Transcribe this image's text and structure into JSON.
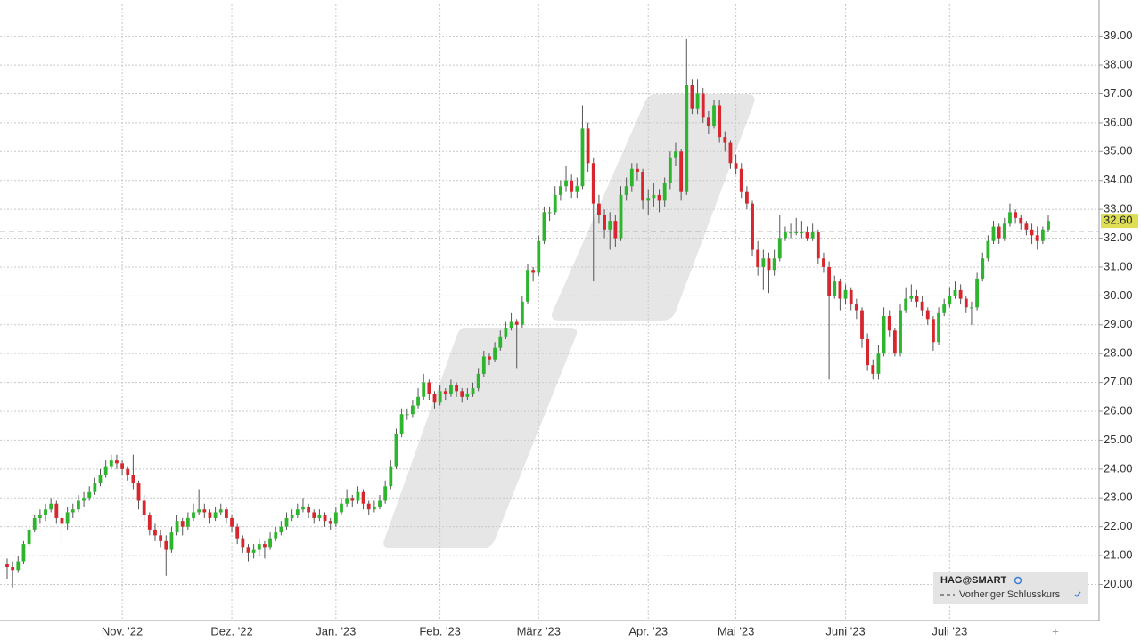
{
  "chart_data": {
    "type": "candlestick",
    "categories": [
      null,
      null,
      null,
      null,
      null,
      null,
      null,
      null,
      null,
      null,
      null,
      null,
      null,
      null,
      null,
      null,
      null,
      null,
      null,
      null,
      null,
      "Nov. '22",
      null,
      null,
      null,
      null,
      null,
      null,
      null,
      null,
      null,
      null,
      null,
      null,
      null,
      null,
      null,
      null,
      null,
      null,
      null,
      "Dez. '22",
      null,
      null,
      null,
      null,
      null,
      null,
      null,
      null,
      null,
      null,
      null,
      null,
      null,
      null,
      null,
      null,
      null,
      null,
      "Jan. '23",
      null,
      null,
      null,
      null,
      null,
      null,
      null,
      null,
      null,
      null,
      null,
      null,
      null,
      null,
      null,
      null,
      null,
      null,
      "Feb. '23",
      null,
      null,
      null,
      null,
      null,
      null,
      null,
      null,
      null,
      null,
      null,
      null,
      null,
      null,
      null,
      null,
      null,
      "März '23",
      null,
      null,
      null,
      null,
      null,
      null,
      null,
      null,
      null,
      null,
      null,
      null,
      null,
      null,
      null,
      null,
      null,
      null,
      null,
      "Apr. '23",
      null,
      null,
      null,
      null,
      null,
      null,
      null,
      null,
      null,
      null,
      null,
      null,
      null,
      null,
      null,
      "Mai '23",
      null,
      null,
      null,
      null,
      null,
      null,
      null,
      null,
      null,
      null,
      null,
      null,
      null,
      null,
      null,
      null,
      null,
      null,
      null,
      "Juni '23",
      null,
      null,
      null,
      null,
      null,
      null,
      null,
      null,
      null,
      null,
      null,
      null,
      null,
      null,
      null,
      null,
      null,
      null,
      "Juli '23",
      null,
      null,
      null,
      null,
      null,
      null,
      null,
      null,
      null,
      null,
      null,
      null,
      null,
      null,
      null,
      null,
      null,
      null
    ],
    "values": [
      [
        20.7,
        20.9,
        20.2,
        20.6
      ],
      [
        20.6,
        20.8,
        19.9,
        20.5
      ],
      [
        20.5,
        21.0,
        20.4,
        20.8
      ],
      [
        20.8,
        21.5,
        20.7,
        21.4
      ],
      [
        21.4,
        22.0,
        21.3,
        21.9
      ],
      [
        21.9,
        22.4,
        21.8,
        22.3
      ],
      [
        22.3,
        22.6,
        22.1,
        22.4
      ],
      [
        22.4,
        22.8,
        22.2,
        22.6
      ],
      [
        22.6,
        23.0,
        22.5,
        22.8
      ],
      [
        22.8,
        22.9,
        22.1,
        22.3
      ],
      [
        22.3,
        22.5,
        21.4,
        22.1
      ],
      [
        22.1,
        22.7,
        21.9,
        22.5
      ],
      [
        22.5,
        22.8,
        22.3,
        22.6
      ],
      [
        22.6,
        23.1,
        22.5,
        22.9
      ],
      [
        22.9,
        23.2,
        22.7,
        23.0
      ],
      [
        23.0,
        23.4,
        22.9,
        23.2
      ],
      [
        23.2,
        23.7,
        23.1,
        23.5
      ],
      [
        23.5,
        24.0,
        23.4,
        23.8
      ],
      [
        23.8,
        24.3,
        23.7,
        24.1
      ],
      [
        24.1,
        24.5,
        24.0,
        24.3
      ],
      [
        24.3,
        24.5,
        24.0,
        24.2
      ],
      [
        24.2,
        24.3,
        23.8,
        24.0
      ],
      [
        24.0,
        24.1,
        23.6,
        23.8
      ],
      [
        23.8,
        24.5,
        23.3,
        23.5
      ],
      [
        23.5,
        23.6,
        22.6,
        22.9
      ],
      [
        22.9,
        23.1,
        22.2,
        22.4
      ],
      [
        22.4,
        22.5,
        21.7,
        21.9
      ],
      [
        21.9,
        22.1,
        21.5,
        21.7
      ],
      [
        21.7,
        21.9,
        21.3,
        21.5
      ],
      [
        21.5,
        21.7,
        20.3,
        21.2
      ],
      [
        21.2,
        22.0,
        21.1,
        21.8
      ],
      [
        21.8,
        22.4,
        21.7,
        22.2
      ],
      [
        22.2,
        22.3,
        21.7,
        22.0
      ],
      [
        22.0,
        22.5,
        21.9,
        22.3
      ],
      [
        22.3,
        22.8,
        22.2,
        22.5
      ],
      [
        22.5,
        23.3,
        22.4,
        22.6
      ],
      [
        22.6,
        22.8,
        22.3,
        22.5
      ],
      [
        22.5,
        22.6,
        22.1,
        22.3
      ],
      [
        22.3,
        22.7,
        22.2,
        22.5
      ],
      [
        22.5,
        22.8,
        22.4,
        22.6
      ],
      [
        22.6,
        22.7,
        22.1,
        22.3
      ],
      [
        22.3,
        22.4,
        21.8,
        22.0
      ],
      [
        22.0,
        22.1,
        21.4,
        21.6
      ],
      [
        21.6,
        21.7,
        21.1,
        21.3
      ],
      [
        21.3,
        21.4,
        20.8,
        21.1
      ],
      [
        21.1,
        21.4,
        20.9,
        21.2
      ],
      [
        21.2,
        21.6,
        21.0,
        21.4
      ],
      [
        21.4,
        21.5,
        20.9,
        21.3
      ],
      [
        21.3,
        21.8,
        21.2,
        21.6
      ],
      [
        21.6,
        22.0,
        21.5,
        21.8
      ],
      [
        21.8,
        22.2,
        21.7,
        22.0
      ],
      [
        22.0,
        22.5,
        21.9,
        22.3
      ],
      [
        22.3,
        22.6,
        22.2,
        22.4
      ],
      [
        22.4,
        22.8,
        22.3,
        22.6
      ],
      [
        22.6,
        23.0,
        22.5,
        22.7
      ],
      [
        22.7,
        22.8,
        22.3,
        22.5
      ],
      [
        22.5,
        22.6,
        22.1,
        22.3
      ],
      [
        22.3,
        22.6,
        22.2,
        22.4
      ],
      [
        22.4,
        22.5,
        22.0,
        22.2
      ],
      [
        22.2,
        22.3,
        21.9,
        22.1
      ],
      [
        22.1,
        22.7,
        22.0,
        22.5
      ],
      [
        22.5,
        23.0,
        22.4,
        22.8
      ],
      [
        22.8,
        23.3,
        22.7,
        23.0
      ],
      [
        23.0,
        23.1,
        22.7,
        22.9
      ],
      [
        22.9,
        23.4,
        22.8,
        23.2
      ],
      [
        23.2,
        23.3,
        22.6,
        22.8
      ],
      [
        22.8,
        22.9,
        22.4,
        22.6
      ],
      [
        22.6,
        22.9,
        22.5,
        22.7
      ],
      [
        22.7,
        23.1,
        22.6,
        22.9
      ],
      [
        22.9,
        23.6,
        22.8,
        23.4
      ],
      [
        23.4,
        24.3,
        23.3,
        24.1
      ],
      [
        24.1,
        25.4,
        24.0,
        25.2
      ],
      [
        25.2,
        26.1,
        25.1,
        25.9
      ],
      [
        25.9,
        26.1,
        25.7,
        25.9
      ],
      [
        25.9,
        26.4,
        25.8,
        26.2
      ],
      [
        26.2,
        26.8,
        26.1,
        26.5
      ],
      [
        26.5,
        27.3,
        26.4,
        27.0
      ],
      [
        27.0,
        27.1,
        26.4,
        26.6
      ],
      [
        26.6,
        26.7,
        26.1,
        26.3
      ],
      [
        26.3,
        26.9,
        26.2,
        26.7
      ],
      [
        26.7,
        26.8,
        26.4,
        26.6
      ],
      [
        26.6,
        27.1,
        26.5,
        26.9
      ],
      [
        26.9,
        27.0,
        26.5,
        26.7
      ],
      [
        26.7,
        26.8,
        26.3,
        26.5
      ],
      [
        26.5,
        26.8,
        26.4,
        26.6
      ],
      [
        26.6,
        27.0,
        26.5,
        26.8
      ],
      [
        26.8,
        27.5,
        26.7,
        27.3
      ],
      [
        27.3,
        28.1,
        27.2,
        27.9
      ],
      [
        27.9,
        28.0,
        27.6,
        27.8
      ],
      [
        27.8,
        28.4,
        27.7,
        28.2
      ],
      [
        28.2,
        28.8,
        28.1,
        28.6
      ],
      [
        28.6,
        29.1,
        28.5,
        28.9
      ],
      [
        28.9,
        29.4,
        28.8,
        29.1
      ],
      [
        29.1,
        29.2,
        27.5,
        29.0
      ],
      [
        29.0,
        30.0,
        28.9,
        29.8
      ],
      [
        29.8,
        31.1,
        29.7,
        30.9
      ],
      [
        30.9,
        31.0,
        30.5,
        30.8
      ],
      [
        30.8,
        32.1,
        30.7,
        31.9
      ],
      [
        31.9,
        33.1,
        31.8,
        32.9
      ],
      [
        32.9,
        33.1,
        32.6,
        32.9
      ],
      [
        32.9,
        33.8,
        32.8,
        33.5
      ],
      [
        33.5,
        34.0,
        33.3,
        33.8
      ],
      [
        33.8,
        34.5,
        33.6,
        34.0
      ],
      [
        34.0,
        34.2,
        33.4,
        33.6
      ],
      [
        33.6,
        34.1,
        33.4,
        33.8
      ],
      [
        33.8,
        36.6,
        33.7,
        35.8
      ],
      [
        35.8,
        36.0,
        34.3,
        34.6
      ],
      [
        34.6,
        34.8,
        30.5,
        33.2
      ],
      [
        33.2,
        33.5,
        32.5,
        32.8
      ],
      [
        32.8,
        33.0,
        32.0,
        32.3
      ],
      [
        32.3,
        32.9,
        31.6,
        32.6
      ],
      [
        32.6,
        32.8,
        31.7,
        32.0
      ],
      [
        32.0,
        33.8,
        31.9,
        33.5
      ],
      [
        33.5,
        34.1,
        33.3,
        33.8
      ],
      [
        33.8,
        34.6,
        33.6,
        34.4
      ],
      [
        34.4,
        34.6,
        34.0,
        34.3
      ],
      [
        34.3,
        34.4,
        33.0,
        33.3
      ],
      [
        33.3,
        33.7,
        32.8,
        33.4
      ],
      [
        33.4,
        33.9,
        33.1,
        33.5
      ],
      [
        33.5,
        33.7,
        32.9,
        33.3
      ],
      [
        33.3,
        34.1,
        33.1,
        33.9
      ],
      [
        33.9,
        35.0,
        33.7,
        34.8
      ],
      [
        34.8,
        35.3,
        34.5,
        35.0
      ],
      [
        35.0,
        35.1,
        33.3,
        33.6
      ],
      [
        33.6,
        38.9,
        33.5,
        37.3
      ],
      [
        37.3,
        37.5,
        36.3,
        36.5
      ],
      [
        36.5,
        37.5,
        36.3,
        37.0
      ],
      [
        37.0,
        37.2,
        36.0,
        36.2
      ],
      [
        36.2,
        36.4,
        35.6,
        35.9
      ],
      [
        35.9,
        36.8,
        35.8,
        36.6
      ],
      [
        36.6,
        36.8,
        35.3,
        35.5
      ],
      [
        35.5,
        35.7,
        35.0,
        35.3
      ],
      [
        35.3,
        35.4,
        34.4,
        34.6
      ],
      [
        34.6,
        34.9,
        34.2,
        34.4
      ],
      [
        34.4,
        34.6,
        33.4,
        33.6
      ],
      [
        33.6,
        33.8,
        33.0,
        33.2
      ],
      [
        33.2,
        33.3,
        31.4,
        31.6
      ],
      [
        31.6,
        31.9,
        30.7,
        31.0
      ],
      [
        31.0,
        31.6,
        30.2,
        31.3
      ],
      [
        31.3,
        31.5,
        30.1,
        30.9
      ],
      [
        30.9,
        31.6,
        30.7,
        31.3
      ],
      [
        31.3,
        32.8,
        31.2,
        32.0
      ],
      [
        32.0,
        32.4,
        31.9,
        32.2
      ],
      [
        32.2,
        32.5,
        32.0,
        32.2
      ],
      [
        32.2,
        32.7,
        32.1,
        32.2
      ],
      [
        32.2,
        32.6,
        32.0,
        32.2
      ],
      [
        32.2,
        32.4,
        31.9,
        32.0
      ],
      [
        32.0,
        32.5,
        31.9,
        32.2
      ],
      [
        32.2,
        32.3,
        31.1,
        31.3
      ],
      [
        31.3,
        31.5,
        30.8,
        31.0
      ],
      [
        31.0,
        31.2,
        27.1,
        30.0
      ],
      [
        30.0,
        30.7,
        29.9,
        30.5
      ],
      [
        30.5,
        30.6,
        29.5,
        29.9
      ],
      [
        29.9,
        30.4,
        29.7,
        30.2
      ],
      [
        30.2,
        30.3,
        29.5,
        29.7
      ],
      [
        29.7,
        29.9,
        29.2,
        29.5
      ],
      [
        29.5,
        29.6,
        28.2,
        28.5
      ],
      [
        28.5,
        28.7,
        27.4,
        27.6
      ],
      [
        27.6,
        27.8,
        27.1,
        27.3
      ],
      [
        27.3,
        28.3,
        27.1,
        28.0
      ],
      [
        28.0,
        29.6,
        27.9,
        29.3
      ],
      [
        29.3,
        29.5,
        28.6,
        28.8
      ],
      [
        28.8,
        28.9,
        27.9,
        28.0
      ],
      [
        28.0,
        29.7,
        27.9,
        29.5
      ],
      [
        29.5,
        30.3,
        29.4,
        29.9
      ],
      [
        29.9,
        30.4,
        29.8,
        30.0
      ],
      [
        30.0,
        30.2,
        29.6,
        29.8
      ],
      [
        29.8,
        30.0,
        29.3,
        29.5
      ],
      [
        29.5,
        29.6,
        29.0,
        29.2
      ],
      [
        29.2,
        29.3,
        28.1,
        28.4
      ],
      [
        28.4,
        29.6,
        28.3,
        29.4
      ],
      [
        29.4,
        29.9,
        29.3,
        29.7
      ],
      [
        29.7,
        30.3,
        29.6,
        30.0
      ],
      [
        30.0,
        30.5,
        29.9,
        30.2
      ],
      [
        30.2,
        30.4,
        29.7,
        29.9
      ],
      [
        29.9,
        30.0,
        29.4,
        29.6
      ],
      [
        29.6,
        29.8,
        29.0,
        29.6
      ],
      [
        29.6,
        30.8,
        29.5,
        30.6
      ],
      [
        30.6,
        31.5,
        30.5,
        31.3
      ],
      [
        31.3,
        32.1,
        31.2,
        31.9
      ],
      [
        31.9,
        32.6,
        31.8,
        32.4
      ],
      [
        32.4,
        32.5,
        31.8,
        32.0
      ],
      [
        32.0,
        32.7,
        31.9,
        32.5
      ],
      [
        32.5,
        33.2,
        32.4,
        32.9
      ],
      [
        32.9,
        33.0,
        32.5,
        32.7
      ],
      [
        32.7,
        32.8,
        32.3,
        32.5
      ],
      [
        32.5,
        32.6,
        32.1,
        32.3
      ],
      [
        32.3,
        32.5,
        31.8,
        32.1
      ],
      [
        32.1,
        32.4,
        31.6,
        31.9
      ],
      [
        31.9,
        32.4,
        31.8,
        32.3
      ],
      [
        32.3,
        32.8,
        32.2,
        32.6
      ]
    ],
    "up_color": "#2db52d",
    "down_color": "#d7262d",
    "ylim": [
      18.75,
      40.1
    ],
    "yticks": [
      {
        "value": 20,
        "label": "20.00"
      },
      {
        "value": 21,
        "label": "21.00"
      },
      {
        "value": 22,
        "label": "22.00"
      },
      {
        "value": 23,
        "label": "23.00"
      },
      {
        "value": 24,
        "label": "24.00"
      },
      {
        "value": 25,
        "label": "25.00"
      },
      {
        "value": 26,
        "label": "26.00"
      },
      {
        "value": 27,
        "label": "27.00"
      },
      {
        "value": 28,
        "label": "28.00"
      },
      {
        "value": 29,
        "label": "29.00"
      },
      {
        "value": 30,
        "label": "30.00"
      },
      {
        "value": 31,
        "label": "31.00"
      },
      {
        "value": 32,
        "label": "32.00"
      },
      {
        "value": 33,
        "label": "33.00"
      },
      {
        "value": 34,
        "label": "34.00"
      },
      {
        "value": 35,
        "label": "35.00"
      },
      {
        "value": 36,
        "label": "36.00"
      },
      {
        "value": 37,
        "label": "37.00"
      },
      {
        "value": 38,
        "label": "38.00"
      },
      {
        "value": 39,
        "label": "39.00"
      }
    ],
    "grid": true,
    "previous_close": 32.24,
    "current_price": {
      "value": 32.6,
      "label": "32.60"
    },
    "legend": {
      "title": "HAG@SMART",
      "items": [
        "Vorheriger Schlusskurs"
      ]
    }
  }
}
